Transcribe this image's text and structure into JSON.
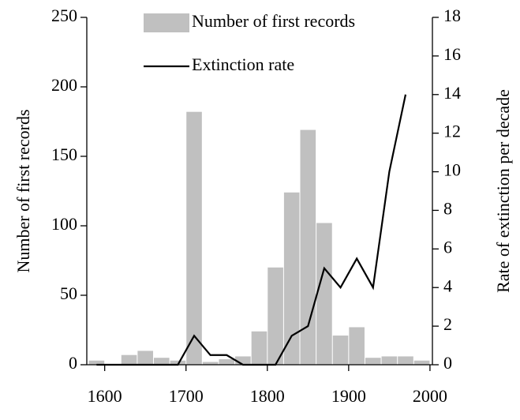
{
  "chart_data": {
    "type": "histogram",
    "ylabel": "Number of first records",
    "y2label": "Rate of extinction per decade",
    "bins": [
      1580,
      1600,
      1620,
      1640,
      1660,
      1680,
      1700,
      1720,
      1740,
      1760,
      1780,
      1800,
      1820,
      1840,
      1860,
      1880,
      1900,
      1920,
      1940,
      1960,
      1980,
      2000
    ],
    "series": [
      {
        "name": "Number of first records",
        "color": "#c0c0c0",
        "values": [
          3,
          0,
          7,
          10,
          5,
          3,
          182,
          2,
          4,
          6,
          24,
          70,
          124,
          169,
          102,
          21,
          27,
          5,
          6,
          6,
          3
        ]
      },
      {
        "name": "Extinction rate",
        "color": "#000000",
        "axis": "y2",
        "x": [
          1590,
          1610,
          1630,
          1650,
          1670,
          1690,
          1710,
          1730,
          1750,
          1770,
          1790,
          1810,
          1830,
          1850,
          1870,
          1890,
          1910,
          1930,
          1950,
          1970
        ],
        "values": [
          0,
          0,
          0,
          0,
          0,
          0,
          1.5,
          0.5,
          0.5,
          0,
          0,
          0,
          1.5,
          2,
          5,
          4,
          5.5,
          4,
          10,
          14
        ]
      }
    ],
    "xlim": [
      1578,
      2003
    ],
    "xticks": [
      1600,
      1700,
      1800,
      1900,
      2000
    ],
    "ylim": [
      0,
      250
    ],
    "yticks": [
      0,
      50,
      100,
      150,
      200,
      250
    ],
    "y2lim": [
      0,
      18
    ],
    "y2ticks": [
      0,
      2,
      4,
      6,
      8,
      10,
      12,
      14,
      16,
      18
    ]
  }
}
